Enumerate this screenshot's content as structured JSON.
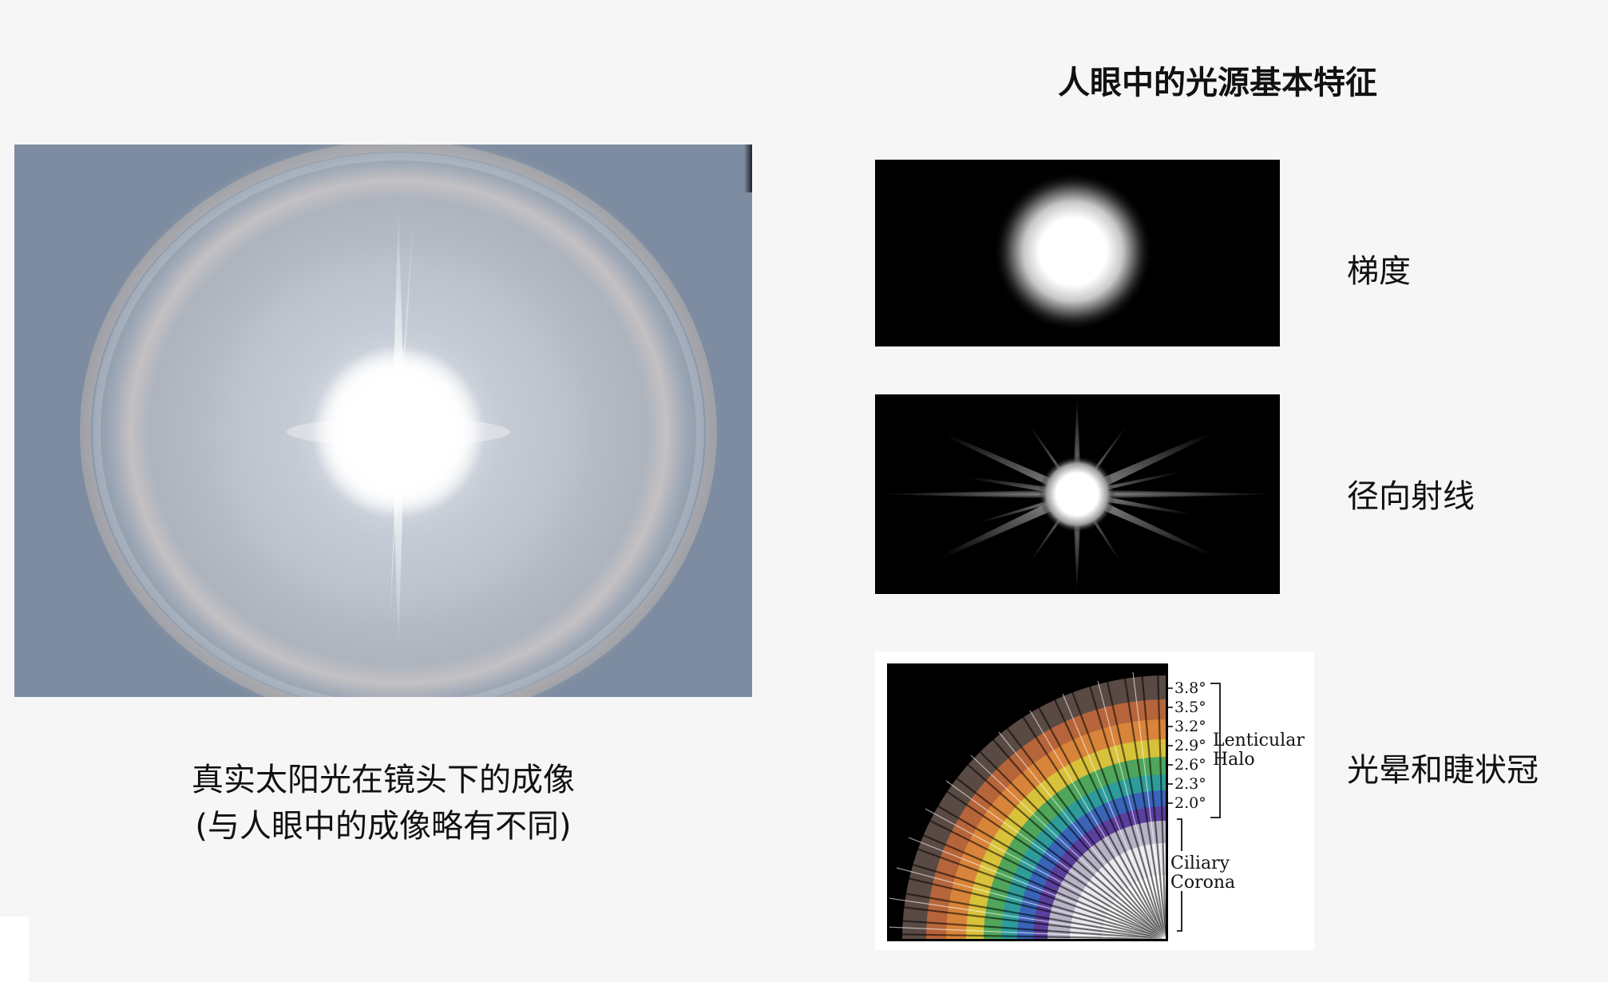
{
  "title": "人眼中的光源基本特征",
  "photo": {
    "caption_line1": "真实太阳光在镜头下的成像",
    "caption_line2": "(与人眼中的成像略有不同)"
  },
  "features": [
    {
      "label": "梯度"
    },
    {
      "label": "径向射线"
    },
    {
      "label": "光晕和睫状冠"
    }
  ],
  "corona_diagram": {
    "scale_ticks": [
      "3.8°",
      "3.5°",
      "3.2°",
      "2.9°",
      "2.6°",
      "2.3°",
      "2.0°"
    ],
    "halo_label_line1": "Lenticular",
    "halo_label_line2": "Halo",
    "corona_label_line1": "Ciliary",
    "corona_label_line2": "Corona"
  },
  "colors": {
    "background": "#f6f6f6",
    "panel_black": "#000000",
    "sky_blue_grey": "#6f8196"
  }
}
